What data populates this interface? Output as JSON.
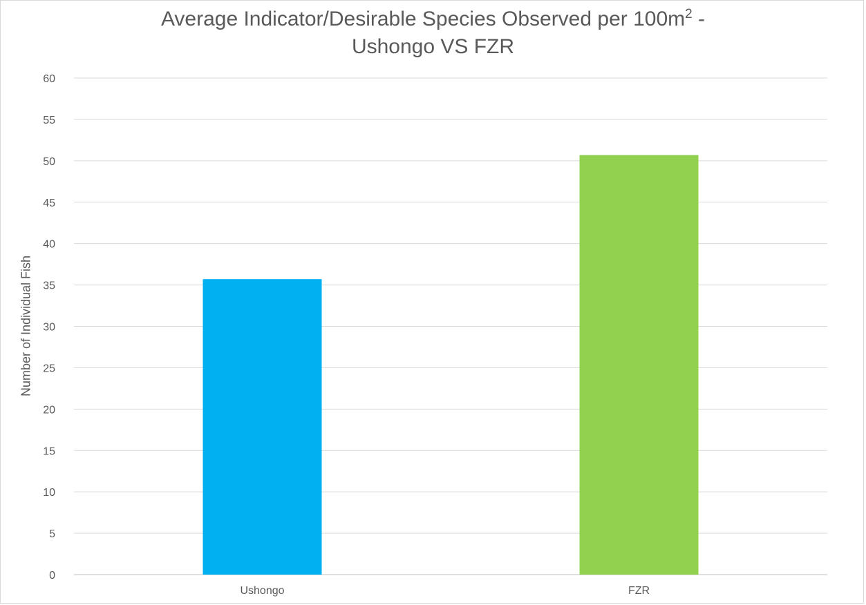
{
  "chart_data": {
    "type": "bar",
    "title_main": "Average Indicator/Desirable Species Observed per 100m",
    "title_superscript": "2",
    "title_suffix": " -",
    "title_line2": "Ushongo VS FZR",
    "ylabel": "Number of Individual Fish",
    "xlabel": "",
    "categories": [
      "Ushongo",
      "FZR"
    ],
    "values": [
      35.7,
      50.7
    ],
    "bar_colors": [
      "#00b0f0",
      "#92d050"
    ],
    "ylim": [
      0,
      60
    ],
    "y_ticks": [
      "0",
      "5",
      "10",
      "15",
      "20",
      "25",
      "30",
      "35",
      "40",
      "45",
      "50",
      "55",
      "60"
    ],
    "grid": true,
    "legend": "none"
  }
}
